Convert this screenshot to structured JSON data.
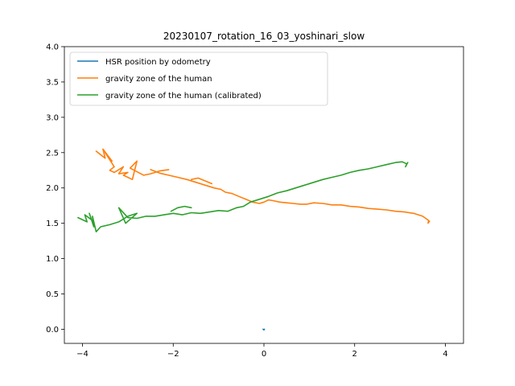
{
  "chart_data": {
    "type": "line",
    "title": "20230107_rotation_16_03_yoshinari_slow",
    "xlabel": "",
    "ylabel": "",
    "xlim": [
      -4.4,
      4.4
    ],
    "ylim": [
      -0.2,
      4.0
    ],
    "xticks": [
      -4,
      -2,
      0,
      2,
      4
    ],
    "yticks": [
      0.0,
      0.5,
      1.0,
      1.5,
      2.0,
      2.5,
      3.0,
      3.5,
      4.0
    ],
    "xtick_labels": [
      "−4",
      "−2",
      "0",
      "2",
      "4"
    ],
    "ytick_labels": [
      "0.0",
      "0.5",
      "1.0",
      "1.5",
      "2.0",
      "2.5",
      "3.0",
      "3.5",
      "4.0"
    ],
    "grid": false,
    "legend_position": "top-left",
    "series": [
      {
        "name": "HSR position by odometry",
        "color": "#1f77b4",
        "segments": [
          [
            [
              -0.02,
              0.0
            ],
            [
              0.0,
              -0.01
            ],
            [
              0.01,
              0.0
            ]
          ]
        ]
      },
      {
        "name": "gravity zone of the human",
        "color": "#ff7f0e",
        "segments": [
          [
            [
              -3.7,
              2.52
            ],
            [
              -3.5,
              2.42
            ],
            [
              -3.55,
              2.55
            ],
            [
              -3.35,
              2.38
            ],
            [
              -3.5,
              2.5
            ],
            [
              -3.3,
              2.3
            ],
            [
              -3.4,
              2.25
            ],
            [
              -3.3,
              2.22
            ],
            [
              -3.1,
              2.3
            ],
            [
              -3.2,
              2.2
            ],
            [
              -3.0,
              2.22
            ],
            [
              -3.1,
              2.18
            ],
            [
              -2.9,
              2.12
            ],
            [
              -2.8,
              2.38
            ],
            [
              -2.95,
              2.28
            ],
            [
              -2.65,
              2.18
            ],
            [
              -2.5,
              2.2
            ],
            [
              -2.3,
              2.24
            ],
            [
              -2.1,
              2.26
            ]
          ],
          [
            [
              -2.5,
              2.26
            ],
            [
              -2.3,
              2.21
            ],
            [
              -2.1,
              2.18
            ],
            [
              -1.9,
              2.15
            ],
            [
              -1.7,
              2.12
            ],
            [
              -1.5,
              2.08
            ],
            [
              -1.3,
              2.04
            ],
            [
              -1.1,
              2.0
            ],
            [
              -0.95,
              1.98
            ],
            [
              -0.85,
              1.94
            ],
            [
              -0.7,
              1.92
            ],
            [
              -0.55,
              1.88
            ],
            [
              -0.4,
              1.84
            ],
            [
              -0.25,
              1.8
            ],
            [
              -0.1,
              1.78
            ],
            [
              0.0,
              1.8
            ],
            [
              0.1,
              1.83
            ],
            [
              0.2,
              1.82
            ],
            [
              0.35,
              1.8
            ],
            [
              0.5,
              1.79
            ],
            [
              0.65,
              1.78
            ],
            [
              0.8,
              1.77
            ],
            [
              0.95,
              1.77
            ],
            [
              1.1,
              1.79
            ],
            [
              1.3,
              1.78
            ],
            [
              1.5,
              1.76
            ],
            [
              1.7,
              1.76
            ],
            [
              1.9,
              1.74
            ],
            [
              2.1,
              1.73
            ],
            [
              2.3,
              1.71
            ],
            [
              2.5,
              1.7
            ],
            [
              2.7,
              1.69
            ],
            [
              2.9,
              1.67
            ],
            [
              3.1,
              1.66
            ],
            [
              3.3,
              1.64
            ],
            [
              3.5,
              1.6
            ],
            [
              3.63,
              1.54
            ],
            [
              3.62,
              1.5
            ],
            [
              3.65,
              1.53
            ]
          ],
          [
            [
              -1.6,
              2.12
            ],
            [
              -1.45,
              2.14
            ],
            [
              -1.3,
              2.1
            ],
            [
              -1.15,
              2.06
            ]
          ]
        ]
      },
      {
        "name": "gravity zone of the human (calibrated)",
        "color": "#2ca02c",
        "segments": [
          [
            [
              -4.1,
              1.58
            ],
            [
              -3.9,
              1.52
            ],
            [
              -3.95,
              1.62
            ],
            [
              -3.8,
              1.55
            ],
            [
              -3.85,
              1.64
            ],
            [
              -3.75,
              1.45
            ],
            [
              -3.78,
              1.6
            ],
            [
              -3.7,
              1.38
            ],
            [
              -3.6,
              1.45
            ],
            [
              -3.4,
              1.48
            ],
            [
              -3.2,
              1.52
            ],
            [
              -3.0,
              1.6
            ],
            [
              -2.8,
              1.64
            ],
            [
              -3.05,
              1.5
            ],
            [
              -3.2,
              1.72
            ],
            [
              -3.0,
              1.58
            ],
            [
              -2.8,
              1.57
            ],
            [
              -2.6,
              1.6
            ],
            [
              -2.4,
              1.6
            ],
            [
              -2.2,
              1.62
            ],
            [
              -2.0,
              1.64
            ],
            [
              -1.8,
              1.62
            ],
            [
              -1.6,
              1.65
            ],
            [
              -1.4,
              1.64
            ],
            [
              -1.2,
              1.66
            ],
            [
              -1.0,
              1.68
            ],
            [
              -0.8,
              1.67
            ],
            [
              -0.6,
              1.72
            ],
            [
              -0.45,
              1.74
            ],
            [
              -0.3,
              1.8
            ],
            [
              -0.1,
              1.84
            ],
            [
              0.1,
              1.88
            ],
            [
              0.3,
              1.93
            ],
            [
              0.5,
              1.96
            ],
            [
              0.7,
              2.0
            ],
            [
              0.9,
              2.04
            ],
            [
              1.1,
              2.08
            ],
            [
              1.3,
              2.12
            ],
            [
              1.5,
              2.15
            ],
            [
              1.7,
              2.18
            ],
            [
              1.9,
              2.22
            ],
            [
              2.1,
              2.25
            ],
            [
              2.3,
              2.27
            ],
            [
              2.5,
              2.3
            ],
            [
              2.7,
              2.33
            ],
            [
              2.9,
              2.36
            ],
            [
              3.05,
              2.37
            ],
            [
              3.15,
              2.34
            ],
            [
              3.12,
              2.3
            ],
            [
              3.17,
              2.36
            ]
          ],
          [
            [
              -2.05,
              1.67
            ],
            [
              -1.9,
              1.72
            ],
            [
              -1.75,
              1.74
            ],
            [
              -1.6,
              1.72
            ]
          ]
        ]
      }
    ]
  }
}
